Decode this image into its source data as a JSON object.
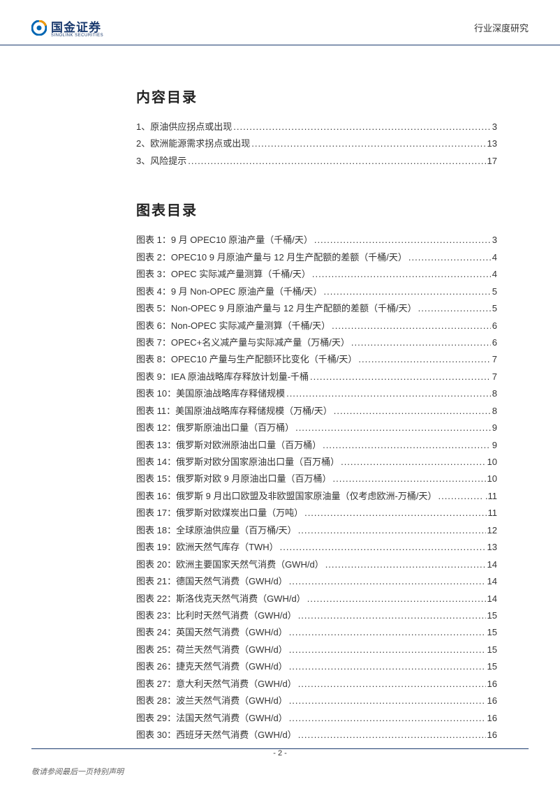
{
  "header": {
    "logo_cn": "国金证券",
    "logo_en": "SINOLINK SECURITIES",
    "right_label": "行业深度研究"
  },
  "sections": {
    "content_title": "内容目录",
    "charts_title": "图表目录"
  },
  "content_toc": [
    {
      "text": "1、原油供应拐点或出现",
      "page": "3"
    },
    {
      "text": "2、欧洲能源需求拐点或出现",
      "page": "13"
    },
    {
      "text": "3、风险提示",
      "page": "17"
    }
  ],
  "charts_toc": [
    {
      "text": "图表 1：9 月 OPEC10 原油产量（千桶/天）",
      "page": "3"
    },
    {
      "text": "图表 2：OPEC10 9 月原油产量与 12 月生产配额的差额（千桶/天）",
      "page": "4"
    },
    {
      "text": "图表 3：OPEC 实际减产量测算（千桶/天）",
      "page": "4"
    },
    {
      "text": "图表 4：9 月 Non-OPEC 原油产量（千桶/天）",
      "page": "5"
    },
    {
      "text": "图表 5：Non-OPEC 9 月原油产量与 12 月生产配额的差额（千桶/天）",
      "page": "5"
    },
    {
      "text": "图表 6：Non-OPEC 实际减产量测算（千桶/天）",
      "page": "6"
    },
    {
      "text": "图表 7：OPEC+名义减产量与实际减产量（万桶/天）",
      "page": "6"
    },
    {
      "text": "图表 8：OPEC10 产量与生产配额环比变化（千桶/天）",
      "page": "7"
    },
    {
      "text": "图表 9：IEA 原油战略库存释放计划量-千桶",
      "page": "7"
    },
    {
      "text": "图表 10：美国原油战略库存释储规模",
      "page": "8"
    },
    {
      "text": "图表 11：美国原油战略库存释储规模（万桶/天）",
      "page": "8"
    },
    {
      "text": "图表 12：俄罗斯原油出口量（百万桶）",
      "page": "9"
    },
    {
      "text": "图表 13：俄罗斯对欧洲原油出口量（百万桶）",
      "page": "9"
    },
    {
      "text": "图表 14：俄罗斯对欧分国家原油出口量（百万桶）",
      "page": "10"
    },
    {
      "text": "图表 15：俄罗斯对欧 9 月原油出口量（百万桶）",
      "page": "10"
    },
    {
      "text": "图表 16：俄罗斯 9 月出口欧盟及非欧盟国家原油量（仅考虑欧洲-万桶/天）",
      "page": ".11"
    },
    {
      "text": "图表 17：俄罗斯对欧煤炭出口量（万吨）",
      "page": "11"
    },
    {
      "text": "图表 18：全球原油供应量（百万桶/天）",
      "page": "12"
    },
    {
      "text": "图表 19：欧洲天然气库存（TWH）",
      "page": "13"
    },
    {
      "text": "图表 20：欧洲主要国家天然气消费（GWH/d）",
      "page": "14"
    },
    {
      "text": "图表 21：德国天然气消费（GWH/d）",
      "page": "14"
    },
    {
      "text": "图表 22：斯洛伐克天然气消费（GWH/d）",
      "page": "14"
    },
    {
      "text": "图表 23：比利时天然气消费（GWH/d）",
      "page": "15"
    },
    {
      "text": "图表 24：英国天然气消费（GWH/d）",
      "page": "15"
    },
    {
      "text": "图表 25：荷兰天然气消费（GWH/d）",
      "page": "15"
    },
    {
      "text": "图表 26：捷克天然气消费（GWH/d）",
      "page": "15"
    },
    {
      "text": "图表 27：意大利天然气消费（GWH/d）",
      "page": "16"
    },
    {
      "text": "图表 28：波兰天然气消费（GWH/d）",
      "page": "16"
    },
    {
      "text": "图表 29：法国天然气消费（GWH/d）",
      "page": "16"
    },
    {
      "text": "图表 30：西班牙天然气消费（GWH/d）",
      "page": "16"
    }
  ],
  "footer": {
    "page_number": "- 2 -",
    "disclaimer": "敬请参阅最后一页特别声明"
  },
  "colors": {
    "border": "#1a3a6e",
    "logo_blue": "#0066b3",
    "logo_orange": "#f39800",
    "text": "#333333",
    "bg": "#f5f1e6"
  }
}
